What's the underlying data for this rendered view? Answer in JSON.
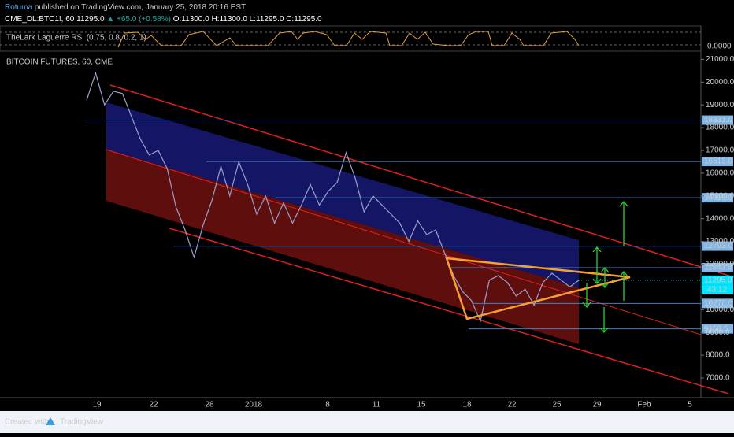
{
  "header": {
    "author": "Rotuma",
    "published": "published on TradingView.com, January 25, 2018 20:16 EST",
    "symbol": "CME_DL:BTC1!, 60",
    "last": "11295.0",
    "change": "▲ +65.0 (+0.58%)",
    "ohlc": "O:11300.0 H:11300.0 L:11295.0 C:11295.0"
  },
  "indicator": {
    "name": "TheLark Laguerre RSI (0.75, 0.8, 0.2, 1)",
    "value_label": "0.0000"
  },
  "chart_data": {
    "type": "line",
    "title": "BITCOIN FUTURES, 60, CME",
    "xticks": [
      "19",
      "22",
      "28",
      "2018",
      "8",
      "11",
      "15",
      "18",
      "22",
      "25",
      "29",
      "Feb",
      "5"
    ],
    "series": [
      {
        "name": "BTC1!",
        "color": "#9aa0c8",
        "values": [
          19200,
          20400,
          19000,
          19600,
          19500,
          18500,
          17500,
          16800,
          17000,
          16200,
          14500,
          13500,
          12300,
          13700,
          14800,
          16300,
          15000,
          16500,
          15500,
          14200,
          15000,
          13800,
          14700,
          13800,
          14600,
          15500,
          14600,
          15200,
          15600,
          16900,
          15800,
          14300,
          15000,
          14600,
          14200,
          13800,
          13000,
          13900,
          13300,
          13500,
          12500,
          11500,
          10800,
          10400,
          9500,
          11300,
          11500,
          11200,
          10600,
          10900,
          10200,
          11200,
          11600,
          11300,
          11000,
          11295
        ]
      }
    ],
    "ylim": [
      6500,
      21500
    ],
    "yticks": [
      {
        "value": 7000,
        "label": "7000.0"
      },
      {
        "value": 8000,
        "label": "8000.0"
      },
      {
        "value": 9000,
        "label": "9000.0"
      },
      {
        "value": 10000,
        "label": "10000.0"
      },
      {
        "value": 11000,
        "label": "11000.0"
      },
      {
        "value": 12000,
        "label": "12000.0"
      },
      {
        "value": 13000,
        "label": "13000.0"
      },
      {
        "value": 14000,
        "label": "14000.0"
      },
      {
        "value": 15000,
        "label": "15000.0"
      },
      {
        "value": 16000,
        "label": "16000.0"
      },
      {
        "value": 17000,
        "label": "17000.0"
      },
      {
        "value": 18000,
        "label": "18000.0"
      },
      {
        "value": 19000,
        "label": "19000.0"
      },
      {
        "value": 20000,
        "label": "20000.0"
      },
      {
        "value": 21000,
        "label": "21000.0"
      }
    ],
    "levels": [
      {
        "value": 18331,
        "label": "18331.0"
      },
      {
        "value": 16513,
        "label": "16513.0"
      },
      {
        "value": 14919,
        "label": "14919.0"
      },
      {
        "value": 12793,
        "label": "12793.0"
      },
      {
        "value": 11843.5,
        "label": "11843.5"
      },
      {
        "value": 10276,
        "label": "10276.0"
      },
      {
        "value": 9158.5,
        "label": "9158.5"
      }
    ],
    "level_color": "#4a7fc0",
    "current": {
      "value": 11295,
      "label": "11295.0",
      "countdown": "43:12"
    }
  },
  "footer": {
    "created": "Created with",
    "brand": "TradingView"
  }
}
